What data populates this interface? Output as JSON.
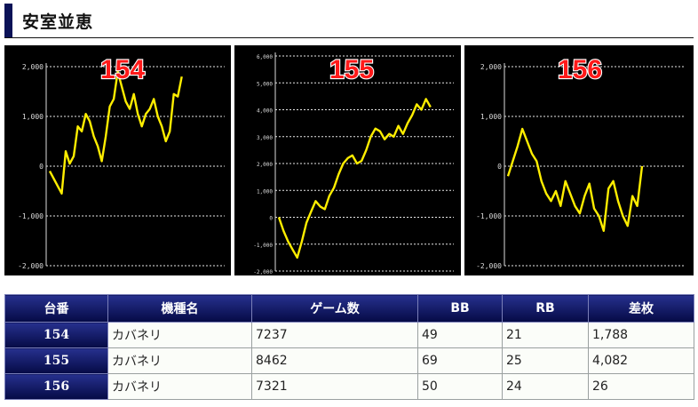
{
  "page": {
    "title": "安室並恵"
  },
  "chart_data": [
    {
      "type": "line",
      "title": "154",
      "ylim": [
        -2000,
        2000
      ],
      "yticks": [
        2000,
        1000,
        0,
        -1000,
        -2000
      ],
      "ytick_labels": [
        "2,000",
        "1,000",
        "0",
        "-1,000",
        "-2,000"
      ],
      "grid": true,
      "line_color": "#ffee00",
      "values": [
        -100,
        -250,
        -400,
        -550,
        300,
        50,
        200,
        800,
        700,
        1050,
        900,
        600,
        400,
        100,
        600,
        1200,
        1350,
        1900,
        1600,
        1300,
        1150,
        1450,
        1050,
        800,
        1050,
        1150,
        1350,
        1000,
        800,
        500,
        700,
        1450,
        1400,
        1800
      ]
    },
    {
      "type": "line",
      "title": "155",
      "ylim": [
        -2000,
        6000
      ],
      "yticks": [
        6000,
        5000,
        4000,
        3000,
        2000,
        1000,
        0,
        -1000,
        -2000
      ],
      "ytick_labels": [
        "6,000",
        "5,000",
        "4,000",
        "3,000",
        "2,000",
        "1,000",
        "0",
        "-1,000",
        "-2,000"
      ],
      "grid": true,
      "line_color": "#ffee00",
      "values": [
        0,
        -500,
        -900,
        -1200,
        -1500,
        -900,
        -200,
        200,
        600,
        400,
        300,
        800,
        1100,
        1600,
        2000,
        2200,
        2300,
        2000,
        2100,
        2500,
        3000,
        3300,
        3200,
        2900,
        3100,
        3000,
        3400,
        3100,
        3500,
        3800,
        4200,
        4000,
        4400,
        4100
      ]
    },
    {
      "type": "line",
      "title": "156",
      "ylim": [
        -2000,
        2000
      ],
      "yticks": [
        2000,
        1000,
        0,
        -1000,
        -2000
      ],
      "ytick_labels": [
        "2,000",
        "1,000",
        "0",
        "-1,000",
        "-2,000"
      ],
      "grid": true,
      "line_color": "#ffee00",
      "values": [
        -200,
        100,
        400,
        750,
        500,
        250,
        100,
        -300,
        -550,
        -700,
        -500,
        -800,
        -300,
        -550,
        -800,
        -950,
        -600,
        -350,
        -850,
        -1000,
        -1300,
        -450,
        -300,
        -700,
        -1000,
        -1200,
        -600,
        -800,
        0
      ]
    }
  ],
  "table": {
    "headers": [
      "台番",
      "機種名",
      "ゲーム数",
      "BB",
      "RB",
      "差枚"
    ],
    "rows": [
      [
        "154",
        "カバネリ",
        "7237",
        "49",
        "21",
        "1,788"
      ],
      [
        "155",
        "カバネリ",
        "8462",
        "69",
        "25",
        "4,082"
      ],
      [
        "156",
        "カバネリ",
        "7321",
        "50",
        "24",
        "26"
      ]
    ]
  }
}
